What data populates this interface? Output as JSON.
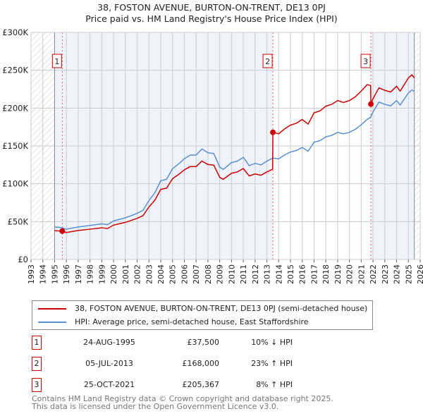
{
  "chart_data": {
    "type": "line",
    "title": "38, FOSTON AVENUE, BURTON-ON-TRENT, DE13 0PJ",
    "subtitle": "Price paid vs. HM Land Registry's House Price Index (HPI)",
    "xlim": [
      1993,
      2026
    ],
    "ylim": [
      0,
      300
    ],
    "y_ticks": [
      {
        "v": 0,
        "label": "£0"
      },
      {
        "v": 50,
        "label": "£50K"
      },
      {
        "v": 100,
        "label": "£100K"
      },
      {
        "v": 150,
        "label": "£150K"
      },
      {
        "v": 200,
        "label": "£200K"
      },
      {
        "v": 250,
        "label": "£250K"
      },
      {
        "v": 300,
        "label": "£300K"
      }
    ],
    "x_ticks": [
      "1993",
      "1994",
      "1995",
      "1996",
      "1997",
      "1998",
      "1999",
      "2000",
      "2001",
      "2002",
      "2003",
      "2004",
      "2005",
      "2006",
      "2007",
      "2008",
      "2009",
      "2010",
      "2011",
      "2012",
      "2013",
      "2014",
      "2015",
      "2016",
      "2017",
      "2018",
      "2019",
      "2020",
      "2021",
      "2022",
      "2023",
      "2024",
      "2025",
      "2026"
    ],
    "grid": true,
    "data_range": [
      1995,
      2025.5
    ],
    "shaded_periods": [
      [
        1995,
        2013.5
      ],
      [
        2021.82,
        2025.5
      ]
    ],
    "series": [
      {
        "name": "38, FOSTON AVENUE, BURTON-ON-TRENT, DE13 0PJ (semi-detached house)",
        "color": "#cc0000",
        "x": [
          1995,
          1995.65,
          1996,
          1997,
          1998,
          1999,
          1999.5,
          2000,
          2001,
          2002,
          2002.5,
          2003,
          2003.5,
          2004,
          2004.5,
          2005,
          2005.5,
          2006,
          2006.5,
          2007,
          2007.5,
          2008,
          2008.5,
          2009,
          2009.3,
          2010,
          2010.5,
          2011,
          2011.5,
          2012,
          2012.5,
          2013,
          2013.49,
          2013.51,
          2014,
          2014.5,
          2015,
          2015.5,
          2016,
          2016.5,
          2017,
          2017.5,
          2018,
          2018.5,
          2019,
          2019.5,
          2020,
          2020.5,
          2021,
          2021.5,
          2021.8,
          2021.82,
          2022,
          2022.5,
          2023,
          2023.5,
          2024,
          2024.3,
          2025,
          2025.3,
          2025.5
        ],
        "y": [
          38,
          37.5,
          35.6,
          38.3,
          40,
          41.8,
          41,
          45.4,
          49,
          54.3,
          57.9,
          69.4,
          78.3,
          92.6,
          94.3,
          106.8,
          112.1,
          118.4,
          122.8,
          122.8,
          130,
          125.5,
          124.6,
          108.6,
          105.9,
          113.9,
          115.7,
          120.2,
          110.4,
          113,
          111.3,
          115.7,
          119.3,
          168,
          166,
          172.5,
          177.5,
          180,
          185,
          178.8,
          193.8,
          196.3,
          202.5,
          205,
          210,
          207.5,
          210,
          215,
          222.5,
          231,
          230,
          205.4,
          212.5,
          226.7,
          223.5,
          221.3,
          228.9,
          222.4,
          239.8,
          244,
          240
        ]
      },
      {
        "name": "HPI: Average price, semi-detached house, East Staffordshire",
        "color": "#5b8fd4",
        "x": [
          1995,
          1995.6,
          1996,
          1997,
          1998,
          1999,
          1999.5,
          2000,
          2001,
          2002,
          2002.5,
          2003,
          2003.5,
          2004,
          2004.5,
          2005,
          2005.5,
          2006,
          2006.5,
          2007,
          2007.5,
          2008,
          2008.5,
          2009,
          2009.3,
          2010,
          2010.5,
          2011,
          2011.5,
          2012,
          2012.5,
          2013,
          2013.5,
          2014,
          2014.5,
          2015,
          2015.5,
          2016,
          2016.5,
          2017,
          2017.5,
          2018,
          2018.5,
          2019,
          2019.5,
          2020,
          2020.5,
          2021,
          2021.5,
          2021.8,
          2022,
          2022.5,
          2023,
          2023.5,
          2024,
          2024.3,
          2025,
          2025.3,
          2025.5
        ],
        "y": [
          43,
          42,
          40,
          43,
          45,
          47,
          46,
          51,
          55,
          61,
          65,
          78,
          88,
          104,
          106,
          120,
          126,
          133,
          138,
          138,
          146,
          141,
          140,
          122,
          119,
          128,
          130,
          135,
          124,
          127,
          125,
          130,
          134,
          133,
          138,
          142,
          144,
          148,
          143,
          155,
          157,
          162,
          164,
          168,
          166,
          168,
          172,
          178,
          185,
          188,
          195,
          208,
          205,
          203,
          210,
          204,
          220,
          224,
          222
        ]
      }
    ],
    "sales": [
      {
        "n": "1",
        "x": 1995.65,
        "y": 37.5,
        "date": "24-AUG-1995",
        "price": "£37,500",
        "hpi": "10% ↓ HPI"
      },
      {
        "n": "2",
        "x": 2013.51,
        "y": 168,
        "date": "05-JUL-2013",
        "price": "£168,000",
        "hpi": "23% ↑ HPI"
      },
      {
        "n": "3",
        "x": 2021.82,
        "y": 205.4,
        "date": "25-OCT-2021",
        "price": "£205,367",
        "hpi": "8% ↑ HPI"
      }
    ]
  },
  "footer": {
    "line1": "Contains HM Land Registry data © Crown copyright and database right 2025.",
    "line2": "This data is licensed under the Open Government Licence v3.0."
  }
}
